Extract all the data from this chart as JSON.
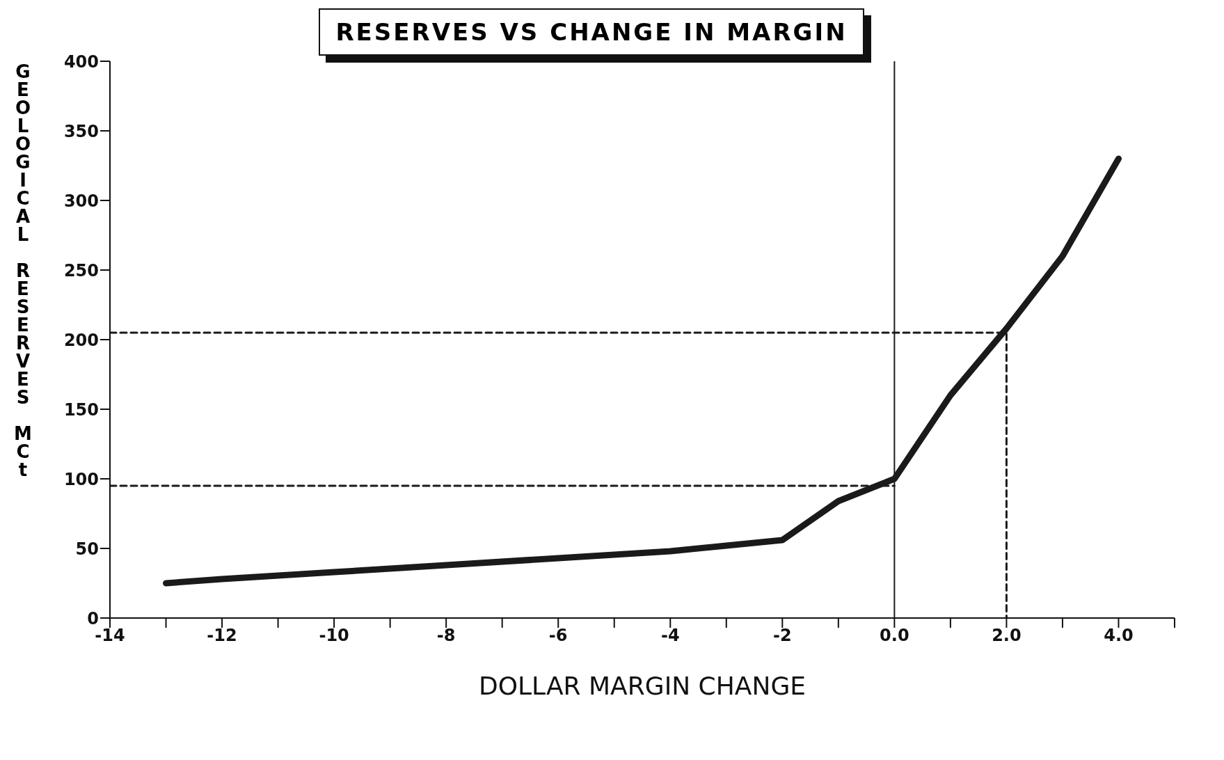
{
  "chart_data": {
    "type": "line",
    "title": "RESERVES VS CHANGE IN MARGIN",
    "xlabel": "DOLLAR MARGIN CHANGE",
    "ylabel": "GEOLOGICAL RESERVES MCt",
    "series": [
      {
        "color": "#1a1a1a",
        "x": [
          -13,
          -12,
          -10,
          -8,
          -6,
          -4,
          -3,
          -2,
          -1,
          0,
          1,
          2,
          3,
          4
        ],
        "values": [
          25,
          28,
          33,
          38,
          43,
          48,
          52,
          56,
          84,
          100,
          160,
          208,
          260,
          330
        ]
      },
      {
        "type": "line",
        "color": "#1a1a1a",
        "line_style": "dashed",
        "x": [
          -14,
          2,
          2
        ],
        "values": [
          205,
          205,
          0
        ]
      },
      {
        "type": "line",
        "color": "#1a1a1a",
        "line_style": "dashed",
        "x": [
          -14,
          0
        ],
        "values": [
          95,
          95
        ]
      }
    ],
    "ref_lines": [
      {
        "axis": "x",
        "value": 0,
        "color": "#1a1a1a"
      }
    ],
    "xlim": [
      -14,
      5
    ],
    "xticks": [
      -14,
      {
        "value": -13,
        "label": null
      },
      -12,
      {
        "value": -11,
        "label": null
      },
      -10,
      {
        "value": -9,
        "label": null
      },
      -8,
      {
        "value": -7,
        "label": null
      },
      -6,
      {
        "value": -5,
        "label": null
      },
      -4,
      {
        "value": -3,
        "label": null
      },
      -2,
      {
        "value": -1,
        "label": null
      },
      {
        "value": 0,
        "label": "0.0"
      },
      {
        "value": 1,
        "label": null
      },
      {
        "value": 2,
        "label": "2.0"
      },
      {
        "value": 3,
        "label": null
      },
      {
        "value": 4,
        "label": "4.0"
      },
      {
        "value": 5,
        "label": null
      }
    ],
    "ylim": [
      0,
      400
    ],
    "yticks": [
      0,
      50,
      100,
      150,
      200,
      250,
      300,
      350,
      400
    ]
  }
}
